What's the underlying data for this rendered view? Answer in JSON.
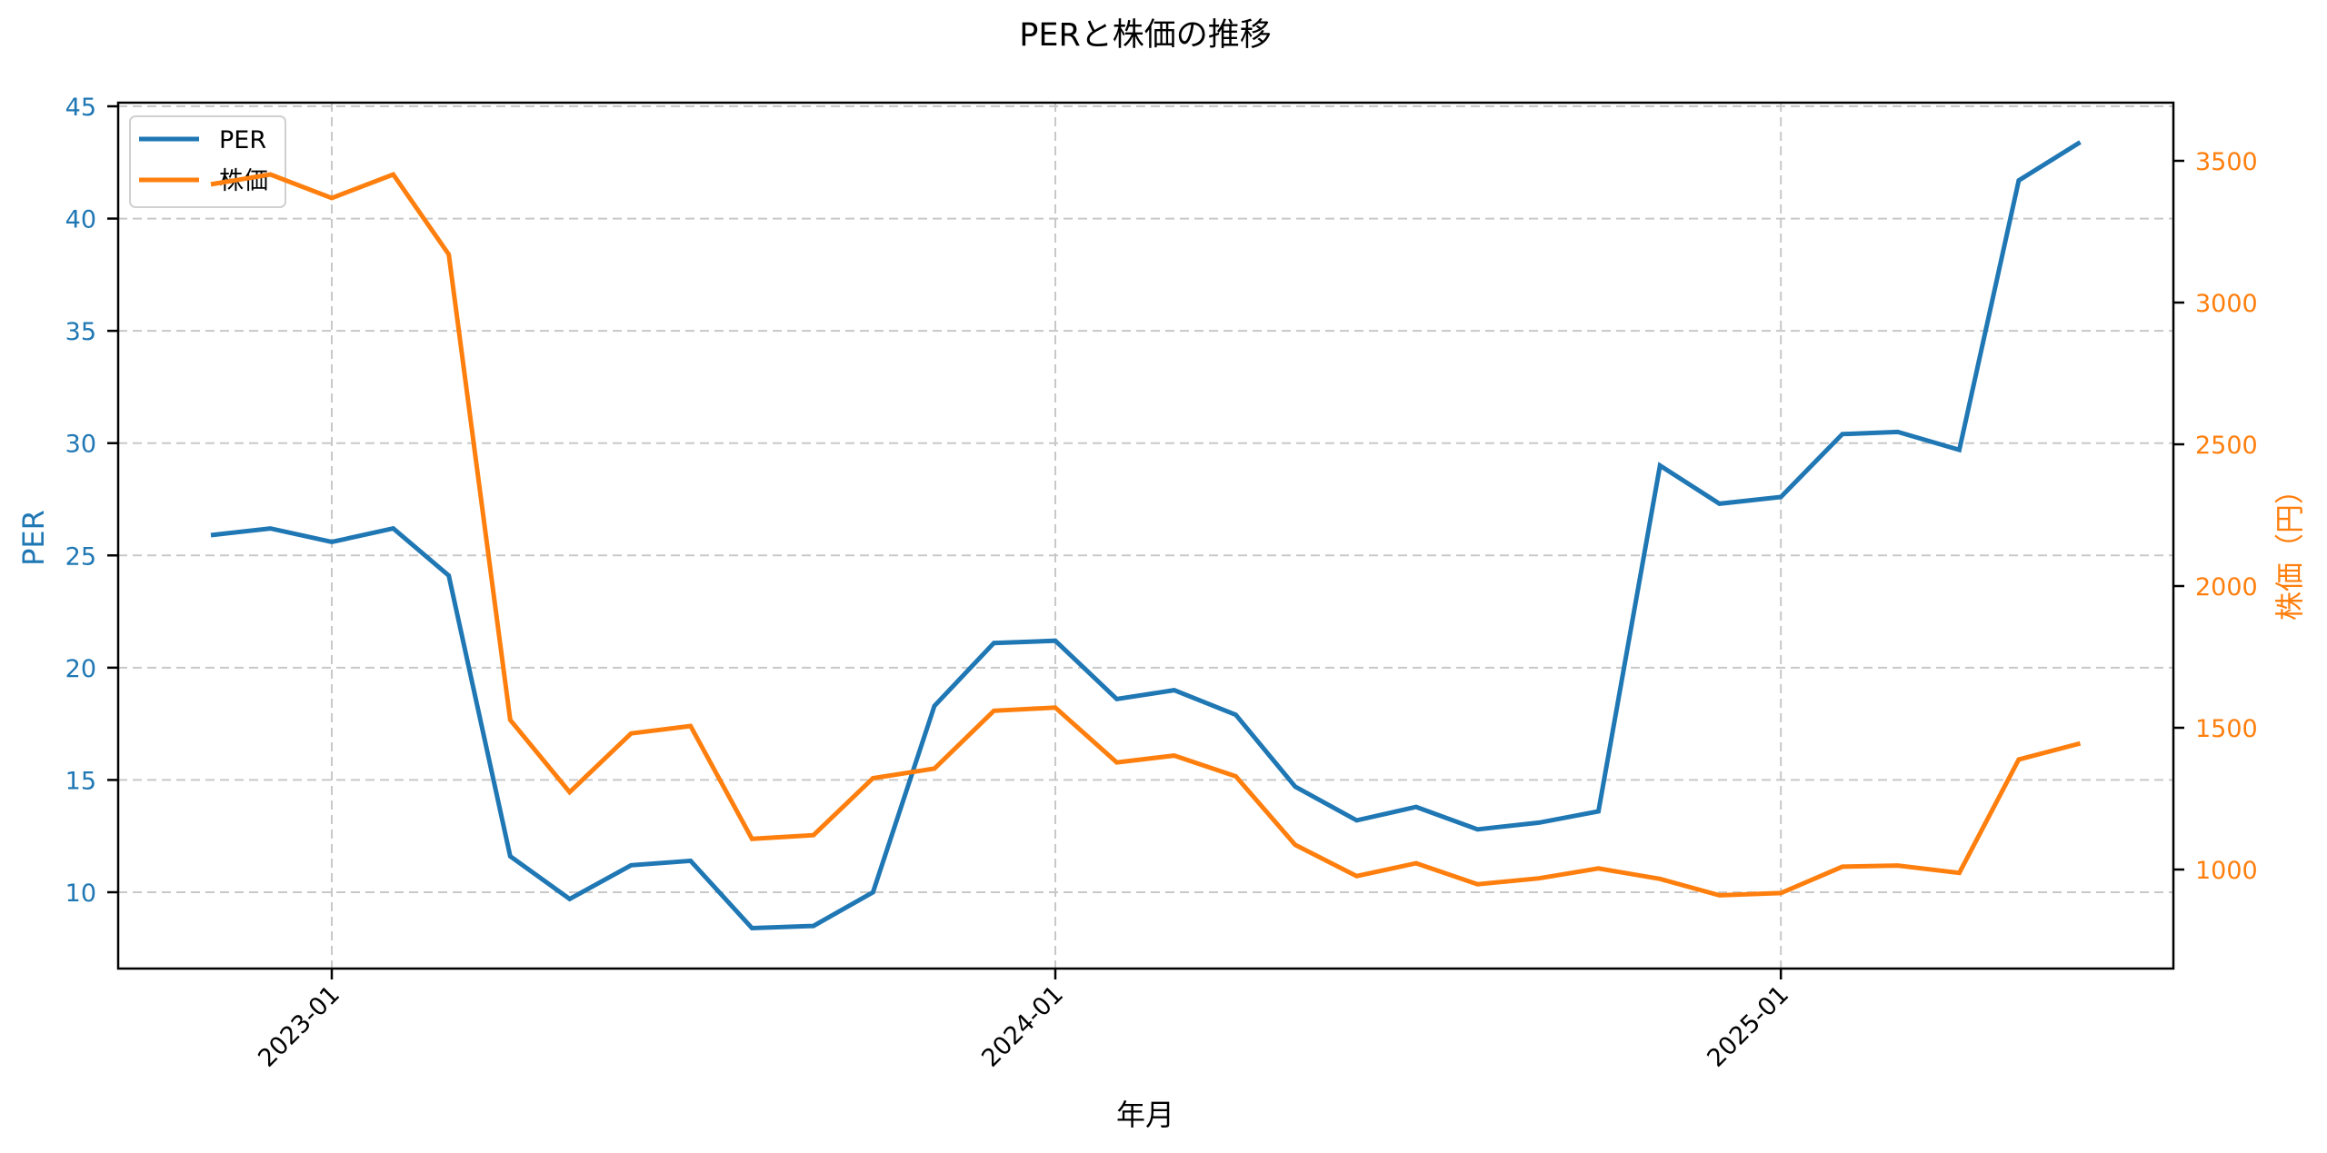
{
  "chart_data": {
    "type": "line",
    "title": "PERと株価の推移",
    "xlabel": "年月",
    "ylabel_left": "PER",
    "ylabel_right": "株価（円）",
    "x": [
      "2022-11",
      "2022-12",
      "2023-01",
      "2023-02",
      "2023-03",
      "2023-04",
      "2023-05",
      "2023-06",
      "2023-07",
      "2023-08",
      "2023-09",
      "2023-10",
      "2023-11",
      "2023-12",
      "2024-01",
      "2024-02",
      "2024-03",
      "2024-04",
      "2024-05",
      "2024-06",
      "2024-07",
      "2024-08",
      "2024-09",
      "2024-10",
      "2024-11",
      "2024-12",
      "2025-01",
      "2025-02",
      "2025-03",
      "2025-04",
      "2025-05",
      "2025-06"
    ],
    "x_ticks": [
      "2023-01",
      "2024-01",
      "2025-01"
    ],
    "x_tick_rotation": 45,
    "series": [
      {
        "name": "PER",
        "axis": "left",
        "color": "#1f77b4",
        "values": [
          25.9,
          26.2,
          25.6,
          26.2,
          24.1,
          11.6,
          9.7,
          11.2,
          11.4,
          8.4,
          8.5,
          10.0,
          18.3,
          21.1,
          21.2,
          18.6,
          19.0,
          17.9,
          14.7,
          13.2,
          13.8,
          12.8,
          13.1,
          13.6,
          29.0,
          27.3,
          27.6,
          30.4,
          30.5,
          29.7,
          41.7,
          43.4
        ]
      },
      {
        "name": "株価",
        "axis": "right",
        "color": "#ff7f0e",
        "values": [
          3417,
          3452,
          3369,
          3452,
          3170,
          1528,
          1273,
          1480,
          1506,
          1108,
          1121,
          1322,
          1356,
          1560,
          1571,
          1378,
          1402,
          1329,
          1087,
          977,
          1022,
          948,
          969,
          1004,
          967,
          909,
          917,
          1010,
          1014,
          988,
          1388,
          1445
        ]
      }
    ],
    "y_left": {
      "ticks": [
        10,
        15,
        20,
        25,
        30,
        35,
        40,
        45
      ],
      "ylim": [
        6.6,
        45.3
      ],
      "color": "#1f77b4"
    },
    "y_right": {
      "ticks": [
        1000,
        1500,
        2000,
        2500,
        3000,
        3500
      ],
      "ylim": [
        654,
        3558
      ],
      "color": "#ff7f0e"
    },
    "grid": true,
    "grid_style": "dashed",
    "legend": {
      "position": "upper left",
      "entries": [
        "PER",
        "株価"
      ]
    }
  }
}
